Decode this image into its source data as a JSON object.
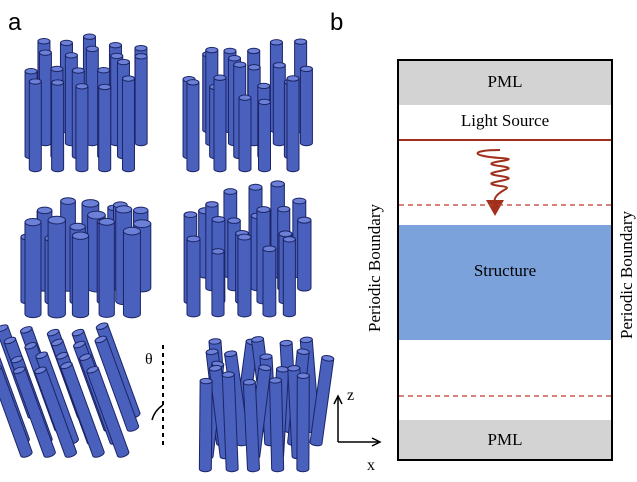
{
  "panels": {
    "a": {
      "label": "a",
      "angle_label": "θ"
    },
    "b": {
      "label": "b",
      "top_layer": "PML",
      "source": "Light Source",
      "left_boundary": "Periodic Boundary",
      "right_boundary": "Periodic Boundary",
      "structure": "Structure",
      "bottom_layer": "PML",
      "axis_z": "z",
      "axis_x": "x"
    }
  }
}
